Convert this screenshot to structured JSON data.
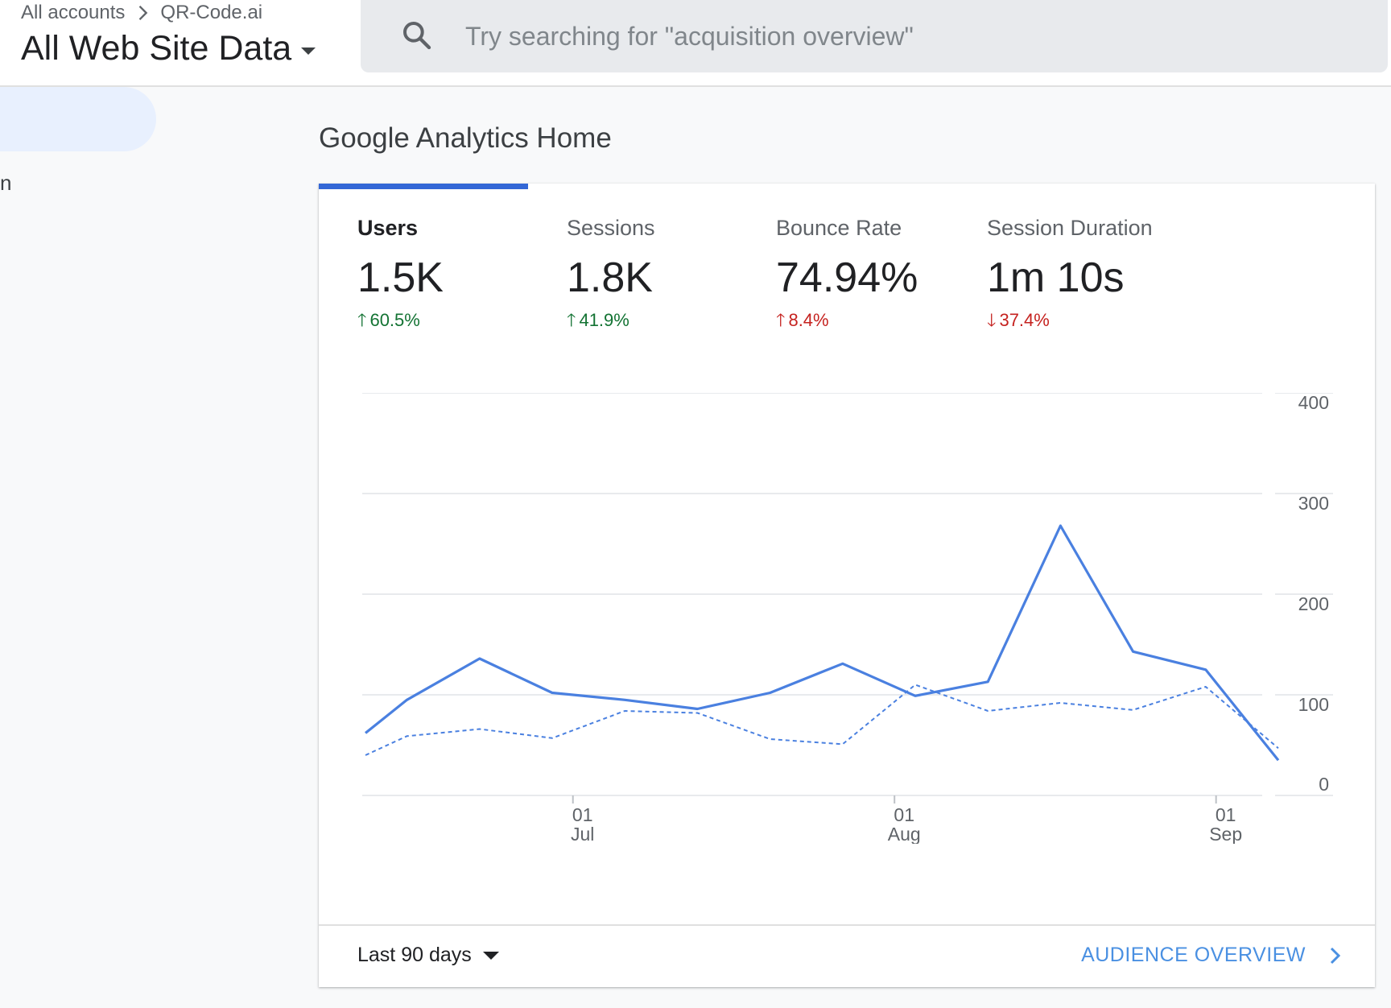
{
  "header": {
    "breadcrumb": [
      "All accounts",
      "QR-Code.ai"
    ],
    "view_name": "All Web Site Data",
    "search_placeholder": "Try searching for \"acquisition overview\""
  },
  "sidebar": {
    "fragment_text": "n"
  },
  "main": {
    "page_title": "Google Analytics Home",
    "metrics": [
      {
        "label": "Users",
        "value": "1.5K",
        "change": "60.5%",
        "direction": "up",
        "change_color": "#137333",
        "active": true
      },
      {
        "label": "Sessions",
        "value": "1.8K",
        "change": "41.9%",
        "direction": "up",
        "change_color": "#137333",
        "active": false
      },
      {
        "label": "Bounce Rate",
        "value": "74.94%",
        "change": "8.4%",
        "direction": "up",
        "change_color": "#c5221f",
        "active": false
      },
      {
        "label": "Session Duration",
        "value": "1m 10s",
        "change": "37.4%",
        "direction": "down",
        "change_color": "#c5221f",
        "active": false
      }
    ],
    "footer": {
      "date_range": "Last 90 days",
      "link_label": "AUDIENCE OVERVIEW"
    }
  },
  "chart_data": {
    "type": "line",
    "x": [
      "2023-06-11",
      "2023-06-15",
      "2023-06-22",
      "2023-06-29",
      "2023-07-06",
      "2023-07-13",
      "2023-07-20",
      "2023-07-27",
      "2023-08-03",
      "2023-08-10",
      "2023-08-17",
      "2023-08-24",
      "2023-08-31",
      "2023-09-07"
    ],
    "series": [
      {
        "values": [
          62,
          95,
          136,
          102,
          95,
          86,
          102,
          131,
          99,
          113,
          268,
          143,
          125,
          35
        ],
        "style": "solid",
        "color": "#4a80e0"
      },
      {
        "values": [
          40,
          59,
          66,
          57,
          84,
          82,
          56,
          51,
          110,
          84,
          92,
          85,
          108,
          47
        ],
        "style": "dashed",
        "color": "#4a80e0"
      }
    ],
    "x_ticks": [
      {
        "day": "01",
        "month": "Jul",
        "date": "2023-07-01"
      },
      {
        "day": "01",
        "month": "Aug",
        "date": "2023-08-01"
      },
      {
        "day": "01",
        "month": "Sep",
        "date": "2023-09-01"
      }
    ],
    "y_ticks": [
      0,
      100,
      200,
      300,
      400
    ],
    "ylim": [
      0,
      400
    ],
    "grid": true,
    "title": "",
    "xlabel": "",
    "ylabel": ""
  }
}
